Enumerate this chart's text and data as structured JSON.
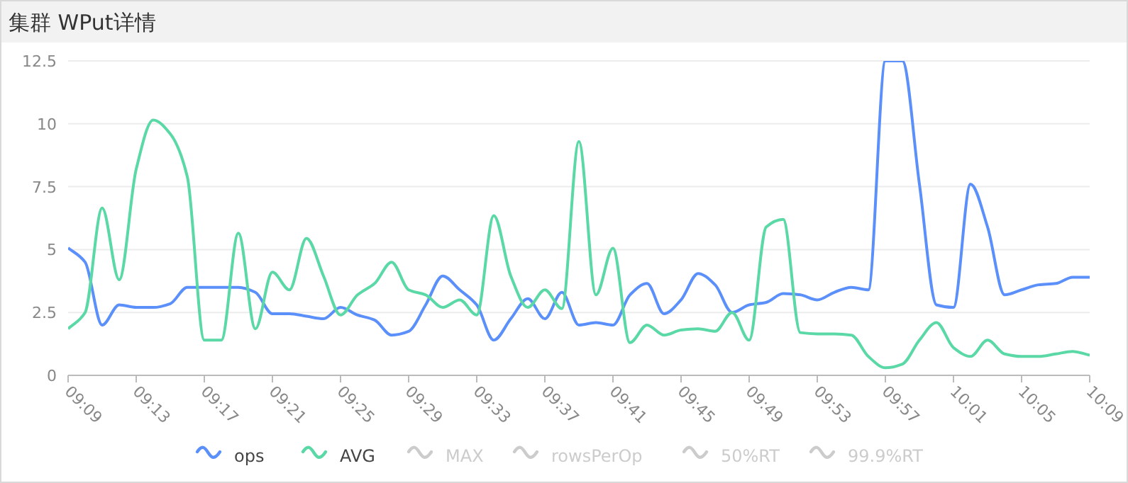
{
  "chart_data": {
    "type": "line",
    "title": "集群 WPut详情",
    "categories": [
      "09:09",
      null,
      null,
      null,
      "09:13",
      null,
      null,
      null,
      "09:17",
      null,
      null,
      null,
      "09:21",
      null,
      null,
      null,
      "09:25",
      null,
      null,
      null,
      "09:29",
      null,
      null,
      null,
      "09:33",
      null,
      null,
      null,
      "09:37",
      null,
      null,
      null,
      "09:41",
      null,
      null,
      null,
      "09:45",
      null,
      null,
      null,
      "09:49",
      null,
      null,
      null,
      "09:53",
      null,
      null,
      null,
      "09:57",
      null,
      null,
      null,
      "10:01",
      null,
      null,
      null,
      "10:05",
      null,
      null,
      null,
      "10:09"
    ],
    "ylim": [
      0,
      12.5
    ],
    "yticks": [
      0,
      2.5,
      5,
      7.5,
      10,
      12.5
    ],
    "grid": "y",
    "legend": "bottom",
    "series": [
      {
        "name": "ops",
        "color": "#5b8ff9",
        "values": [
          5.07,
          4.5,
          2.0,
          2.8,
          2.7,
          2.7,
          2.85,
          3.5,
          3.5,
          3.5,
          3.5,
          3.3,
          2.45,
          2.45,
          2.35,
          2.25,
          2.7,
          2.4,
          2.2,
          1.6,
          1.75,
          2.8,
          3.95,
          3.4,
          2.8,
          1.4,
          2.25,
          3.05,
          2.25,
          3.3,
          2.0,
          2.1,
          2.0,
          3.2,
          3.65,
          2.45,
          3.0,
          4.05,
          3.6,
          2.5,
          2.8,
          2.9,
          3.25,
          3.2,
          3.0,
          3.3,
          3.5,
          3.4,
          12.5,
          12.5,
          7.6,
          2.8,
          2.7,
          7.6,
          5.9,
          3.2,
          3.4,
          3.6,
          3.65,
          3.9,
          3.9
        ]
      },
      {
        "name": "AVG",
        "color": "#5ad8a6",
        "values": [
          1.85,
          2.5,
          6.65,
          3.8,
          8.2,
          10.15,
          9.6,
          7.9,
          1.4,
          1.4,
          5.65,
          1.85,
          4.1,
          3.4,
          5.45,
          3.95,
          2.4,
          3.2,
          3.65,
          4.5,
          3.4,
          3.2,
          2.7,
          3.0,
          2.4,
          6.35,
          3.95,
          2.7,
          3.4,
          2.65,
          9.3,
          3.2,
          5.05,
          1.3,
          2.0,
          1.6,
          1.8,
          1.85,
          1.75,
          2.5,
          1.4,
          5.9,
          6.2,
          1.7,
          1.65,
          1.65,
          1.6,
          0.75,
          0.3,
          0.45,
          1.4,
          2.1,
          1.1,
          0.75,
          1.4,
          0.85,
          0.75,
          0.75,
          0.85,
          0.95,
          0.8
        ]
      },
      {
        "name": "MAX",
        "color": "#cccccc",
        "values": [
          null,
          null,
          null,
          null,
          null,
          null,
          null,
          null,
          null,
          null,
          null,
          null,
          null,
          null,
          null,
          null,
          null,
          null,
          null,
          null,
          null,
          null,
          null,
          null,
          null,
          null,
          null,
          null,
          null,
          null,
          null,
          null,
          null,
          null,
          null,
          null,
          null,
          null,
          null,
          null,
          null,
          null,
          null,
          null,
          null,
          null,
          null,
          null,
          null,
          null,
          null,
          null,
          null,
          null,
          null,
          null,
          null,
          null,
          null,
          null,
          null
        ]
      },
      {
        "name": "rowsPerOp",
        "color": "#cccccc",
        "values": [
          null,
          null,
          null,
          null,
          null,
          null,
          null,
          null,
          null,
          null,
          null,
          null,
          null,
          null,
          null,
          null,
          null,
          null,
          null,
          null,
          null,
          null,
          null,
          null,
          null,
          null,
          null,
          null,
          null,
          null,
          null,
          null,
          null,
          null,
          null,
          null,
          null,
          null,
          null,
          null,
          null,
          null,
          null,
          null,
          null,
          null,
          null,
          null,
          null,
          null,
          null,
          null,
          null,
          null,
          null,
          null,
          null,
          null,
          null,
          null,
          null
        ]
      },
      {
        "name": "50%RT",
        "color": "#cccccc",
        "values": [
          null,
          null,
          null,
          null,
          null,
          null,
          null,
          null,
          null,
          null,
          null,
          null,
          null,
          null,
          null,
          null,
          null,
          null,
          null,
          null,
          null,
          null,
          null,
          null,
          null,
          null,
          null,
          null,
          null,
          null,
          null,
          null,
          null,
          null,
          null,
          null,
          null,
          null,
          null,
          null,
          null,
          null,
          null,
          null,
          null,
          null,
          null,
          null,
          null,
          null,
          null,
          null,
          null,
          null,
          null,
          null,
          null,
          null,
          null,
          null,
          null
        ]
      },
      {
        "name": "99.9%RT",
        "color": "#cccccc",
        "values": [
          null,
          null,
          null,
          null,
          null,
          null,
          null,
          null,
          null,
          null,
          null,
          null,
          null,
          null,
          null,
          null,
          null,
          null,
          null,
          null,
          null,
          null,
          null,
          null,
          null,
          null,
          null,
          null,
          null,
          null,
          null,
          null,
          null,
          null,
          null,
          null,
          null,
          null,
          null,
          null,
          null,
          null,
          null,
          null,
          null,
          null,
          null,
          null,
          null,
          null,
          null,
          null,
          null,
          null,
          null,
          null,
          null,
          null,
          null,
          null,
          null
        ]
      }
    ]
  }
}
